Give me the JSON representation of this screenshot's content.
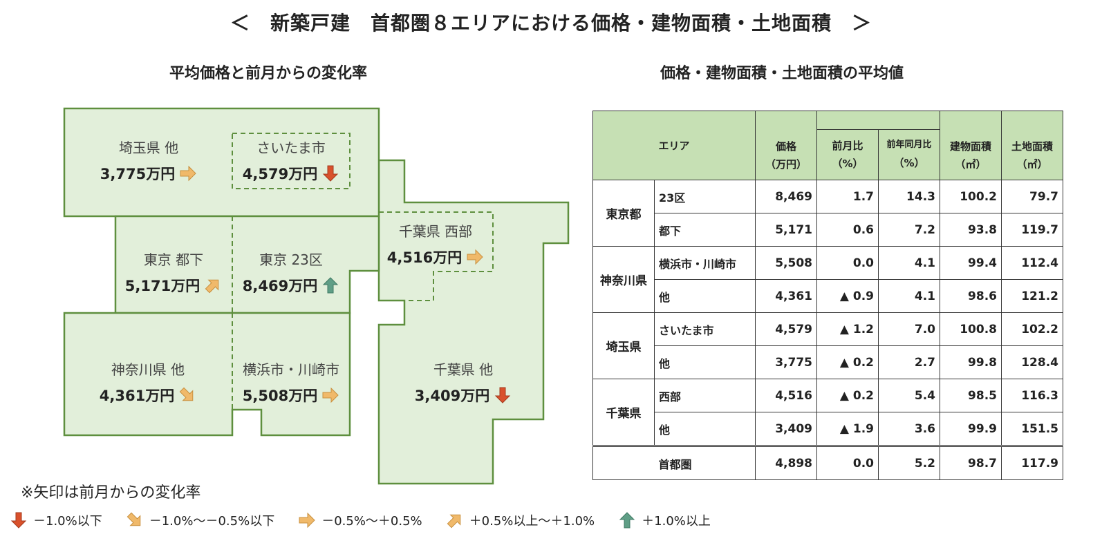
{
  "title": "＜　新築戸建　首都圏８エリアにおける価格・建物面積・土地面積　＞",
  "left_subtitle": "平均価格と前月からの変化率",
  "right_subtitle": "価格・建物面積・土地面積の平均値",
  "colors": {
    "fill": "#e2efda",
    "stroke": "#5e8f3e",
    "header": "#c6e0b4",
    "down": "#d9512c",
    "flat": "#f0b96a",
    "up": "#5f9e86"
  },
  "map": [
    {
      "id": "saitama-other",
      "label": "埼玉県 他",
      "value": "3,775万円",
      "arrow": "flat"
    },
    {
      "id": "saitama-city",
      "label": "さいたま市",
      "value": "4,579万円",
      "arrow": "down"
    },
    {
      "id": "tokyo-tama",
      "label": "東京 都下",
      "value": "5,171万円",
      "arrow": "slight-up"
    },
    {
      "id": "tokyo-23",
      "label": "東京 23区",
      "value": "8,469万円",
      "arrow": "up"
    },
    {
      "id": "chiba-west",
      "label": "千葉県 西部",
      "value": "4,516万円",
      "arrow": "flat"
    },
    {
      "id": "kanagawa-other",
      "label": "神奈川県 他",
      "value": "4,361万円",
      "arrow": "slight-down"
    },
    {
      "id": "yokohama-kawasaki",
      "label": "横浜市・川崎市",
      "value": "5,508万円",
      "arrow": "flat"
    },
    {
      "id": "chiba-other",
      "label": "千葉県 他",
      "value": "3,409万円",
      "arrow": "down"
    }
  ],
  "table": {
    "headers": {
      "area": "エリア",
      "price": "価格",
      "price_unit": "（万円）",
      "mom": "前月比",
      "mom_unit": "（%）",
      "yoy": "前年同月比",
      "yoy_unit": "（%）",
      "building": "建物面積",
      "building_unit": "（㎡）",
      "land": "土地面積",
      "land_unit": "（㎡）"
    },
    "groups": [
      {
        "name": "東京都",
        "rows": [
          [
            "23区",
            "8,469",
            "1.7",
            "14.3",
            "100.2",
            "79.7"
          ],
          [
            "都下",
            "5,171",
            "0.6",
            "7.2",
            "93.8",
            "119.7"
          ]
        ]
      },
      {
        "name": "神奈川県",
        "rows": [
          [
            "横浜市・川崎市",
            "5,508",
            "0.0",
            "4.1",
            "99.4",
            "112.4"
          ],
          [
            "他",
            "4,361",
            "▲ 0.9",
            "4.1",
            "98.6",
            "121.2"
          ]
        ]
      },
      {
        "name": "埼玉県",
        "rows": [
          [
            "さいたま市",
            "4,579",
            "▲ 1.2",
            "7.0",
            "100.8",
            "102.2"
          ],
          [
            "他",
            "3,775",
            "▲ 0.2",
            "2.7",
            "99.8",
            "128.4"
          ]
        ]
      },
      {
        "name": "千葉県",
        "rows": [
          [
            "西部",
            "4,516",
            "▲ 0.2",
            "5.4",
            "98.5",
            "116.3"
          ],
          [
            "他",
            "3,409",
            "▲ 1.9",
            "3.6",
            "99.9",
            "151.5"
          ]
        ]
      }
    ],
    "total": [
      "首都圏",
      "4,898",
      "0.0",
      "5.2",
      "98.7",
      "117.9"
    ]
  },
  "note": "※矢印は前月からの変化率",
  "legend": [
    {
      "arrow": "down",
      "label": "－1.0%以下"
    },
    {
      "arrow": "slight-down",
      "label": "－1.0%～－0.5%以下"
    },
    {
      "arrow": "flat",
      "label": "－0.5%～＋0.5%"
    },
    {
      "arrow": "slight-up",
      "label": "＋0.5%以上～＋1.0%"
    },
    {
      "arrow": "up",
      "label": "＋1.0%以上"
    }
  ]
}
